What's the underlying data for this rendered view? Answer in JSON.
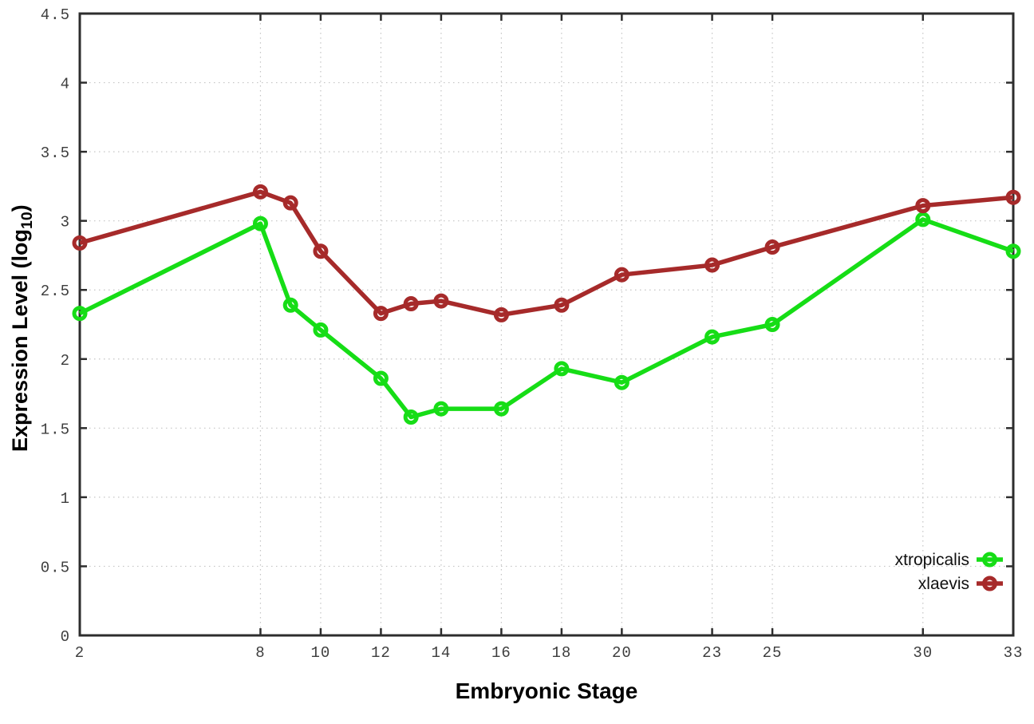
{
  "chart_data": {
    "type": "line",
    "title": "",
    "xlabel": "Embryonic Stage",
    "ylabel": "Expression Level (log10)",
    "ylabel_parts": {
      "main": "Expression Level (log",
      "sub": "10",
      "close": ")"
    },
    "x": [
      2,
      8,
      9,
      10,
      12,
      13,
      14,
      16,
      18,
      20,
      23,
      25,
      30,
      33
    ],
    "series": [
      {
        "name": "xtropicalis",
        "color": "#16dd16",
        "values": [
          2.33,
          2.98,
          2.39,
          2.21,
          1.86,
          1.58,
          1.64,
          1.64,
          1.93,
          1.83,
          2.16,
          2.25,
          3.01,
          2.78
        ]
      },
      {
        "name": "xlaevis",
        "color": "#a62a2a",
        "values": [
          2.84,
          3.21,
          3.13,
          2.78,
          2.33,
          2.4,
          2.42,
          2.32,
          2.39,
          2.61,
          2.68,
          2.81,
          3.11,
          3.17
        ]
      }
    ],
    "xticks": [
      2,
      8,
      10,
      12,
      14,
      16,
      18,
      20,
      23,
      25,
      30,
      33
    ],
    "yticks": [
      0,
      0.5,
      1,
      1.5,
      2,
      2.5,
      3,
      3.5,
      4,
      4.5
    ],
    "xlim": [
      2,
      33
    ],
    "ylim": [
      0,
      4.5
    ],
    "grid": "dotted",
    "marker": "open-circle",
    "legend_position": "bottom-right",
    "legend": [
      "xtropicalis",
      "xlaevis"
    ]
  },
  "style_colors": {
    "frame": "#2d2d2d",
    "grid": "#c4c4c4",
    "tick_text": "#3d3d3d"
  }
}
